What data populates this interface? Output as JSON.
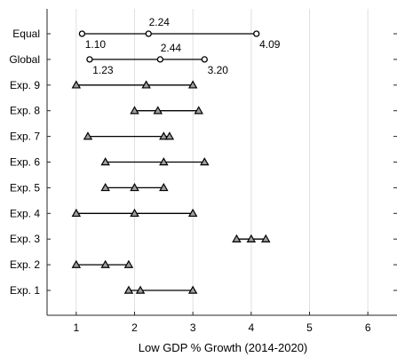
{
  "chart_data": {
    "type": "scatter",
    "title": "",
    "xlabel": "Low GDP % Growth (2014-2020)",
    "ylabel": "",
    "xlim": [
      0.5,
      6.5
    ],
    "xticks": [
      1,
      2,
      3,
      4,
      5,
      6
    ],
    "grid": "vertical",
    "legend": "none",
    "colors": {
      "line": "#000000",
      "marker_fill": "#9e9e9e",
      "grid": "#e0e0e0",
      "axis": "#262626"
    },
    "rows": [
      {
        "label": "Equal",
        "marker": "circle",
        "values": [
          1.1,
          2.24,
          4.09
        ]
      },
      {
        "label": "Global",
        "marker": "circle",
        "values": [
          1.23,
          2.44,
          3.2
        ]
      },
      {
        "label": "Exp. 9",
        "marker": "triangle",
        "values": [
          1.0,
          2.2,
          3.0
        ]
      },
      {
        "label": "Exp. 8",
        "marker": "triangle",
        "values": [
          2.0,
          2.4,
          3.1
        ]
      },
      {
        "label": "Exp. 7",
        "marker": "triangle",
        "values": [
          1.2,
          2.5,
          2.6
        ]
      },
      {
        "label": "Exp. 6",
        "marker": "triangle",
        "values": [
          1.5,
          2.5,
          3.2
        ]
      },
      {
        "label": "Exp. 5",
        "marker": "triangle",
        "values": [
          1.5,
          2.0,
          2.5
        ]
      },
      {
        "label": "Exp. 4",
        "marker": "triangle",
        "values": [
          1.0,
          2.0,
          3.0
        ]
      },
      {
        "label": "Exp. 3",
        "marker": "triangle",
        "values": [
          3.75,
          4.0,
          4.25
        ]
      },
      {
        "label": "Exp. 2",
        "marker": "triangle",
        "values": [
          1.0,
          1.5,
          1.9
        ]
      },
      {
        "label": "Exp. 1",
        "marker": "triangle",
        "values": [
          1.9,
          2.1,
          3.0
        ]
      }
    ],
    "annotations": [
      {
        "row": "Equal",
        "text": "2.24",
        "value": 2.24,
        "position": "above"
      },
      {
        "row": "Equal",
        "text": "1.10",
        "value": 1.1,
        "position": "below"
      },
      {
        "row": "Equal",
        "text": "4.09",
        "value": 4.09,
        "position": "below"
      },
      {
        "row": "Global",
        "text": "2.44",
        "value": 2.44,
        "position": "above"
      },
      {
        "row": "Global",
        "text": "1.23",
        "value": 1.23,
        "position": "below"
      },
      {
        "row": "Global",
        "text": "3.20",
        "value": 3.2,
        "position": "below"
      }
    ]
  }
}
